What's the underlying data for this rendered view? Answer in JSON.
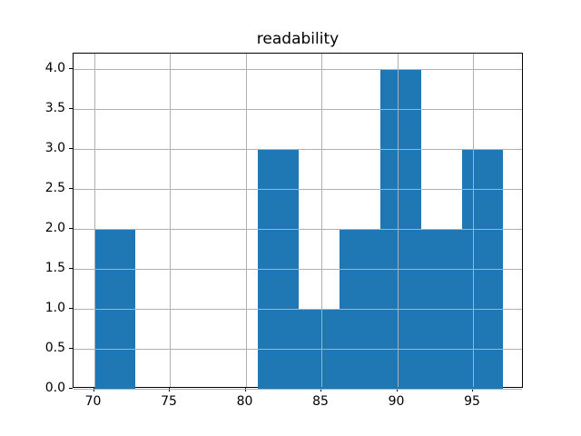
{
  "chart_data": {
    "type": "bar",
    "subtype": "histogram",
    "title": "readability",
    "bin_edges": [
      70.0,
      72.7,
      75.4,
      78.1,
      80.8,
      83.5,
      86.2,
      88.9,
      91.6,
      94.3,
      97.0
    ],
    "counts": [
      2,
      0,
      0,
      0,
      3,
      1,
      2,
      4,
      2,
      3
    ],
    "xlabel": "",
    "ylabel": "",
    "xticks": [
      70,
      75,
      80,
      85,
      90,
      95
    ],
    "yticks": [
      0.0,
      0.5,
      1.0,
      1.5,
      2.0,
      2.5,
      3.0,
      3.5,
      4.0
    ],
    "xlim": [
      68.65,
      98.35
    ],
    "ylim": [
      0,
      4.2
    ],
    "grid": true,
    "grid_above_bars": true,
    "legend": null,
    "bar_color": "#1f77b4",
    "grid_color": "#b0b0b0",
    "spine_color": "#000000",
    "text_color": "#000000",
    "background_color": "#ffffff"
  }
}
